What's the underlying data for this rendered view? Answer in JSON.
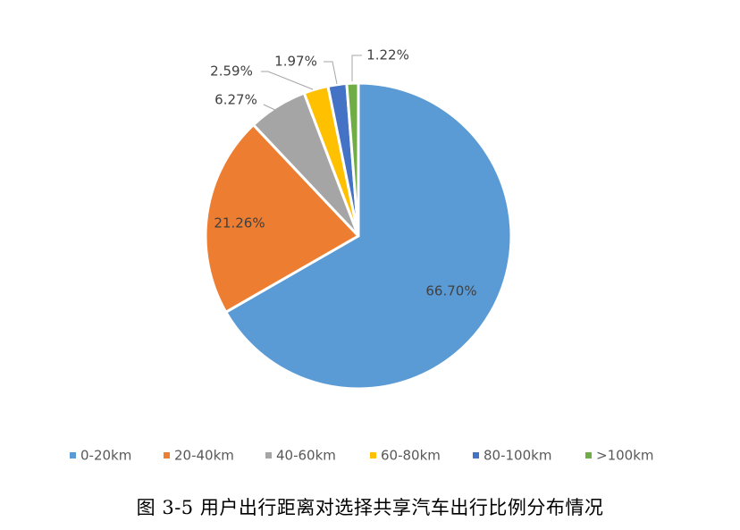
{
  "chart_data": {
    "type": "pie",
    "title": "",
    "categories": [
      "0-20km",
      "20-40km",
      "40-60km",
      "60-80km",
      "80-100km",
      ">100km"
    ],
    "values": [
      66.7,
      21.26,
      6.27,
      2.59,
      1.97,
      1.22
    ],
    "value_labels": [
      "66.70%",
      "21.26%",
      "6.27%",
      "2.59%",
      "1.97%",
      "1.22%"
    ],
    "colors": [
      "#5b9bd5",
      "#ed7d31",
      "#a5a5a5",
      "#ffc000",
      "#4472c4",
      "#70ad47"
    ],
    "legend_position": "bottom",
    "start_angle": "12 o'clock, clockwise"
  },
  "caption": "图 3-5  用户出行距离对选择共享汽车出行比例分布情况"
}
